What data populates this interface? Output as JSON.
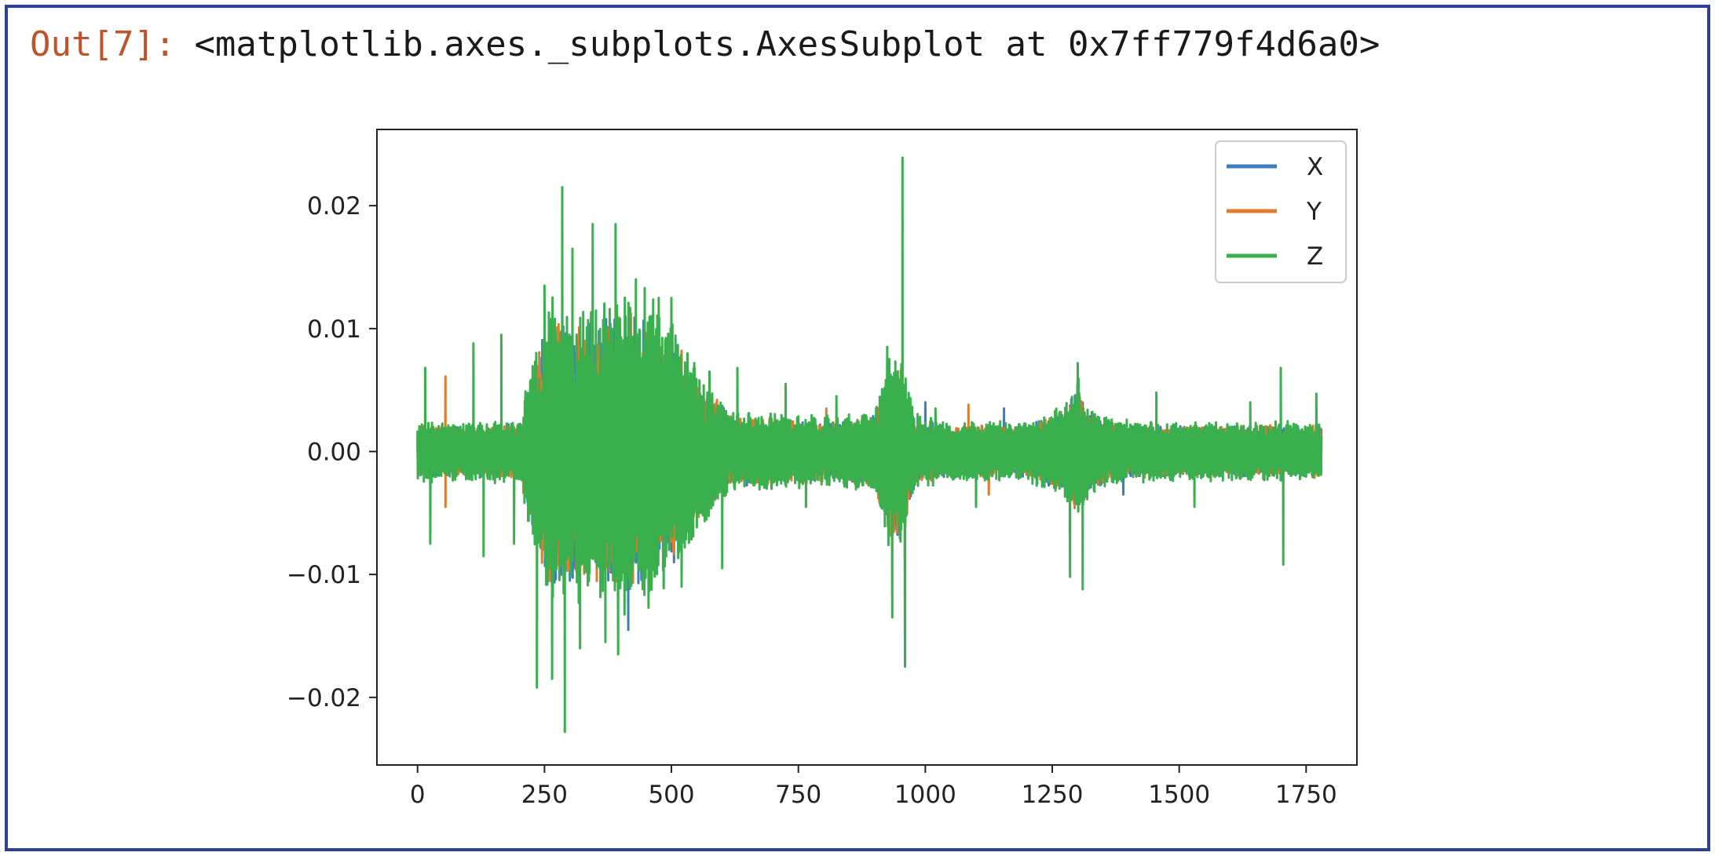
{
  "cell": {
    "prompt": "Out[7]:",
    "output_text": "<matplotlib.axes._subplots.AxesSubplot at 0x7ff779f4d6a0>"
  },
  "colors": {
    "frame": "#2f3f93",
    "prompt": "#c2522a",
    "X": "#3b7fbf",
    "Y": "#e07b2c",
    "Z": "#3aaf4d"
  },
  "chart_data": {
    "type": "line",
    "title": "",
    "xlabel": "",
    "ylabel": "",
    "xlim": [
      -80,
      1850
    ],
    "ylim": [
      -0.0255,
      0.0262
    ],
    "xticks": [
      0,
      250,
      500,
      750,
      1000,
      1250,
      1500,
      1750
    ],
    "xtick_labels": [
      "0",
      "250",
      "500",
      "750",
      "1000",
      "1250",
      "1500",
      "1750"
    ],
    "yticks": [
      -0.02,
      -0.01,
      0.0,
      0.01,
      0.02
    ],
    "ytick_labels": [
      "−0.02",
      "−0.01",
      "0.00",
      "0.01",
      "0.02"
    ],
    "grid": false,
    "legend_position": "top-right",
    "x_range": [
      0,
      1780
    ],
    "envelope_x": [
      0,
      100,
      200,
      230,
      260,
      300,
      350,
      400,
      450,
      500,
      550,
      620,
      700,
      800,
      900,
      930,
      955,
      980,
      1050,
      1200,
      1270,
      1300,
      1320,
      1400,
      1500,
      1600,
      1700,
      1780
    ],
    "envelope_amplitude": [
      0.0022,
      0.0022,
      0.0024,
      0.0075,
      0.012,
      0.011,
      0.011,
      0.012,
      0.012,
      0.0095,
      0.006,
      0.003,
      0.0028,
      0.0026,
      0.003,
      0.0075,
      0.007,
      0.0028,
      0.0022,
      0.0022,
      0.0035,
      0.0055,
      0.0035,
      0.0022,
      0.0022,
      0.0022,
      0.0022,
      0.0022
    ],
    "series": [
      {
        "name": "X",
        "color": "#3b7fbf",
        "scale": 0.85,
        "spikes": [
          [
            285,
            0.0089
          ],
          [
            300,
            -0.0105
          ],
          [
            455,
            0.0095
          ],
          [
            505,
            -0.009
          ],
          [
            415,
            -0.0145
          ],
          [
            1000,
            0.004
          ],
          [
            1155,
            0.0035
          ],
          [
            1390,
            -0.0035
          ]
        ]
      },
      {
        "name": "Y",
        "color": "#e07b2c",
        "scale": 0.85,
        "spikes": [
          [
            55,
            0.0061
          ],
          [
            55,
            -0.0045
          ],
          [
            330,
            0.009
          ],
          [
            470,
            -0.0095
          ],
          [
            520,
            0.0082
          ],
          [
            805,
            0.0035
          ],
          [
            1085,
            0.0038
          ],
          [
            1125,
            -0.0035
          ]
        ]
      },
      {
        "name": "Z",
        "color": "#3aaf4d",
        "scale": 1.0,
        "spikes": [
          [
            15,
            0.0068
          ],
          [
            25,
            -0.0075
          ],
          [
            110,
            0.0088
          ],
          [
            130,
            -0.0085
          ],
          [
            165,
            0.0095
          ],
          [
            190,
            -0.0075
          ],
          [
            235,
            -0.0192
          ],
          [
            250,
            0.0135
          ],
          [
            265,
            -0.0185
          ],
          [
            285,
            0.0215
          ],
          [
            290,
            -0.0228
          ],
          [
            305,
            0.0165
          ],
          [
            320,
            -0.016
          ],
          [
            345,
            0.0185
          ],
          [
            370,
            -0.0155
          ],
          [
            390,
            0.0185
          ],
          [
            395,
            -0.0165
          ],
          [
            430,
            0.014
          ],
          [
            455,
            -0.0127
          ],
          [
            475,
            0.0125
          ],
          [
            500,
            0.0125
          ],
          [
            520,
            -0.011
          ],
          [
            545,
            0.0072
          ],
          [
            575,
            0.0065
          ],
          [
            600,
            -0.0095
          ],
          [
            630,
            0.0068
          ],
          [
            725,
            0.0055
          ],
          [
            765,
            -0.0045
          ],
          [
            825,
            0.0045
          ],
          [
            925,
            0.0085
          ],
          [
            935,
            -0.0135
          ],
          [
            955,
            0.0239
          ],
          [
            960,
            -0.0175
          ],
          [
            1020,
            0.0035
          ],
          [
            1100,
            -0.0045
          ],
          [
            1285,
            -0.0102
          ],
          [
            1300,
            0.0072
          ],
          [
            1310,
            -0.0112
          ],
          [
            1455,
            0.0048
          ],
          [
            1530,
            -0.0045
          ],
          [
            1640,
            0.004
          ],
          [
            1700,
            0.0068
          ],
          [
            1705,
            -0.0092
          ],
          [
            1770,
            0.0047
          ]
        ]
      }
    ]
  }
}
